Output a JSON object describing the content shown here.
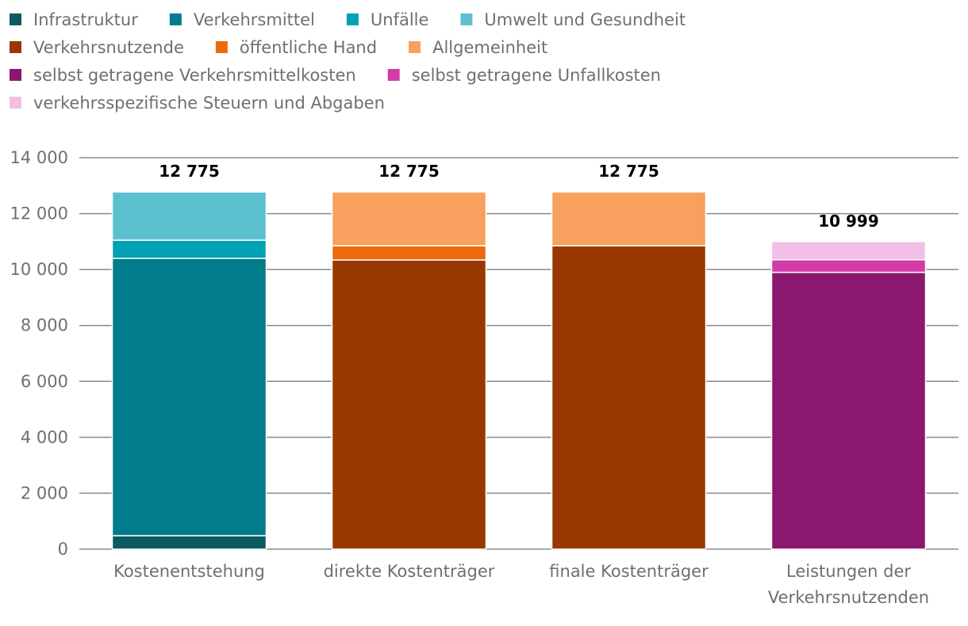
{
  "chart_data": {
    "type": "bar",
    "stacked": true,
    "title": "",
    "xlabel": "",
    "ylabel": "",
    "ylim": [
      0,
      14000
    ],
    "y_ticks": [
      0,
      2000,
      4000,
      6000,
      8000,
      10000,
      12000,
      14000
    ],
    "y_tick_labels": [
      "0",
      "2 000",
      "4 000",
      "6 000",
      "8 000",
      "10 000",
      "12 000",
      "14 000"
    ],
    "grid": true,
    "legend_position": "top",
    "categories": [
      [
        "Kostenentstehung"
      ],
      [
        "direkte Kostenträger"
      ],
      [
        "finale Kostenträger"
      ],
      [
        "Leistungen der",
        "Verkehrsnutzenden"
      ]
    ],
    "totals": [
      12775,
      12775,
      12775,
      10999
    ],
    "total_labels": [
      "12 775",
      "12 775",
      "12 775",
      "10 999"
    ],
    "series": [
      {
        "name": "Infrastruktur",
        "color": "#0b5a62",
        "values": [
          480,
          0,
          0,
          0
        ]
      },
      {
        "name": "Verkehrsmittel",
        "color": "#007c8a",
        "values": [
          9920,
          0,
          0,
          0
        ]
      },
      {
        "name": "Unfälle",
        "color": "#00a1b5",
        "values": [
          650,
          0,
          0,
          0
        ]
      },
      {
        "name": "Umwelt und Gesundheit",
        "color": "#5cc1cf",
        "values": [
          1725,
          0,
          0,
          0
        ]
      },
      {
        "name": "Verkehrsnutzende",
        "color": "#983800",
        "values": [
          0,
          10340,
          10850,
          0
        ]
      },
      {
        "name": "öffentliche Hand",
        "color": "#ec6a0c",
        "values": [
          0,
          510,
          0,
          0
        ]
      },
      {
        "name": "Allgemeinheit",
        "color": "#f8a05e",
        "values": [
          0,
          1925,
          1925,
          0
        ]
      },
      {
        "name": "selbst getragene Verkehrsmittelkosten",
        "color": "#8b176f",
        "values": [
          0,
          0,
          0,
          9900
        ]
      },
      {
        "name": "selbst getragene Unfallkosten",
        "color": "#d23ca8",
        "values": [
          0,
          0,
          0,
          450
        ]
      },
      {
        "name": "verkehrsspezifische Steuern und Abgaben",
        "color": "#f1bfe5",
        "values": [
          0,
          0,
          0,
          649
        ]
      }
    ]
  }
}
